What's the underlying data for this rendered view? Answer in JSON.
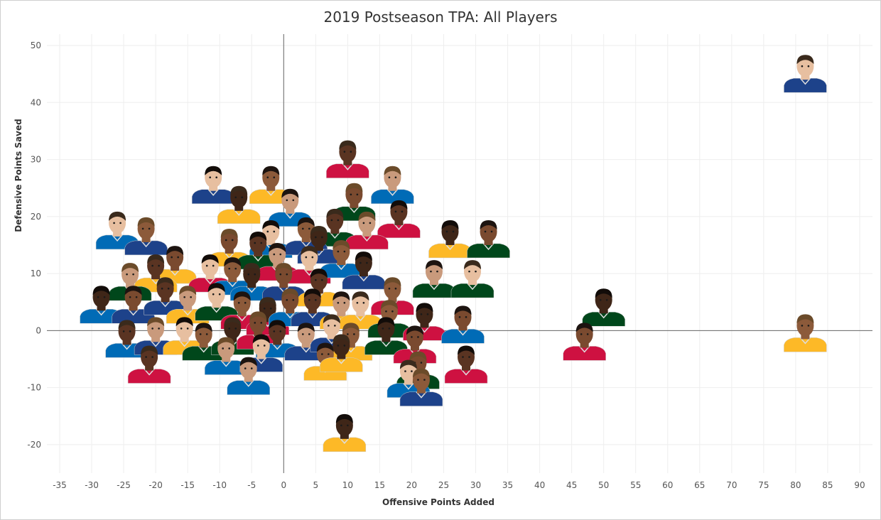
{
  "chart_data": {
    "type": "scatter",
    "title": "2019 Postseason TPA: All Players",
    "xlabel": "Offensive Points Added",
    "ylabel": "Defensive Points Saved",
    "xlim": [
      -37,
      92
    ],
    "ylim": [
      -25,
      52
    ],
    "xticks": [
      -35,
      -30,
      -25,
      -20,
      -15,
      -10,
      -5,
      0,
      5,
      10,
      15,
      20,
      25,
      30,
      35,
      40,
      45,
      50,
      55,
      60,
      65,
      70,
      75,
      80,
      85,
      90
    ],
    "yticks": [
      -20,
      -10,
      0,
      10,
      20,
      30,
      40,
      50
    ],
    "grid": true,
    "marker": "player headshot",
    "palette": {
      "skin": [
        "#7a4a2f",
        "#5a3422",
        "#c99a7c",
        "#e7bfa0",
        "#8c5a3a",
        "#3f2618"
      ],
      "hair": [
        "#1d1410",
        "#3a2a1c",
        "#6b4b2a",
        "#120c09"
      ],
      "jersey": [
        "#1d428a",
        "#ffffff",
        "#ce1141",
        "#007a33",
        "#fdb927",
        "#0e2240",
        "#006bb6",
        "#c8102e",
        "#00471b",
        "#98002e"
      ]
    },
    "points": [
      {
        "x": 81.5,
        "y": 44.5
      },
      {
        "x": 81.5,
        "y": -1.0
      },
      {
        "x": 50.0,
        "y": 3.5
      },
      {
        "x": 47.0,
        "y": -2.5
      },
      {
        "x": 10.0,
        "y": 29.5
      },
      {
        "x": 17.0,
        "y": 25.0
      },
      {
        "x": -11.0,
        "y": 25.0
      },
      {
        "x": -2.0,
        "y": 25.0
      },
      {
        "x": -7.0,
        "y": 21.5
      },
      {
        "x": 11.0,
        "y": 22.0
      },
      {
        "x": 18.0,
        "y": 19.0
      },
      {
        "x": 1.0,
        "y": 21.0
      },
      {
        "x": -26.0,
        "y": 17.0
      },
      {
        "x": -21.5,
        "y": 16.0
      },
      {
        "x": 26.0,
        "y": 15.5
      },
      {
        "x": 32.0,
        "y": 15.5
      },
      {
        "x": 8.0,
        "y": 17.5
      },
      {
        "x": 13.0,
        "y": 17.0
      },
      {
        "x": -2.0,
        "y": 15.5
      },
      {
        "x": 3.5,
        "y": 16.0
      },
      {
        "x": 5.5,
        "y": 14.5
      },
      {
        "x": -8.5,
        "y": 14.0
      },
      {
        "x": -4.0,
        "y": 13.5
      },
      {
        "x": -1.0,
        "y": 11.5
      },
      {
        "x": 4.0,
        "y": 11.0
      },
      {
        "x": 9.0,
        "y": 12.0
      },
      {
        "x": 12.5,
        "y": 10.0
      },
      {
        "x": -17.0,
        "y": 11.0
      },
      {
        "x": -20.0,
        "y": 9.5
      },
      {
        "x": -24.0,
        "y": 8.0
      },
      {
        "x": -11.5,
        "y": 9.5
      },
      {
        "x": -8.0,
        "y": 9.0
      },
      {
        "x": -5.0,
        "y": 8.0
      },
      {
        "x": 0.0,
        "y": 8.0
      },
      {
        "x": 5.5,
        "y": 7.0
      },
      {
        "x": 23.5,
        "y": 8.5
      },
      {
        "x": 29.5,
        "y": 8.5
      },
      {
        "x": 17.0,
        "y": 5.5
      },
      {
        "x": -28.5,
        "y": 4.0
      },
      {
        "x": -23.5,
        "y": 4.0
      },
      {
        "x": -18.5,
        "y": 5.5
      },
      {
        "x": -15.0,
        "y": 4.0
      },
      {
        "x": -10.5,
        "y": 4.5
      },
      {
        "x": -6.5,
        "y": 3.0
      },
      {
        "x": -2.5,
        "y": 2.0
      },
      {
        "x": 1.0,
        "y": 3.5
      },
      {
        "x": 4.5,
        "y": 3.5
      },
      {
        "x": 9.0,
        "y": 3.0
      },
      {
        "x": 12.0,
        "y": 3.0
      },
      {
        "x": 16.5,
        "y": 1.5
      },
      {
        "x": 22.0,
        "y": 1.0
      },
      {
        "x": 28.0,
        "y": 0.5
      },
      {
        "x": -24.5,
        "y": -2.0
      },
      {
        "x": -20.0,
        "y": -1.5
      },
      {
        "x": -15.5,
        "y": -1.5
      },
      {
        "x": -12.5,
        "y": -2.5
      },
      {
        "x": -8.0,
        "y": -1.5
      },
      {
        "x": -4.0,
        "y": -0.5
      },
      {
        "x": -1.0,
        "y": -2.0
      },
      {
        "x": 3.5,
        "y": -2.5
      },
      {
        "x": 7.5,
        "y": -1.0
      },
      {
        "x": 10.5,
        "y": -2.5
      },
      {
        "x": 16.0,
        "y": -1.5
      },
      {
        "x": 20.5,
        "y": -3.0
      },
      {
        "x": -21.0,
        "y": -6.5
      },
      {
        "x": -9.0,
        "y": -5.0
      },
      {
        "x": -3.5,
        "y": -4.5
      },
      {
        "x": 6.5,
        "y": -6.0
      },
      {
        "x": 9.0,
        "y": -4.5
      },
      {
        "x": 21.0,
        "y": -7.5
      },
      {
        "x": 28.5,
        "y": -6.5
      },
      {
        "x": -5.5,
        "y": -8.5
      },
      {
        "x": 19.5,
        "y": -9.0
      },
      {
        "x": 21.5,
        "y": -10.5
      },
      {
        "x": 9.5,
        "y": -18.5
      }
    ]
  }
}
